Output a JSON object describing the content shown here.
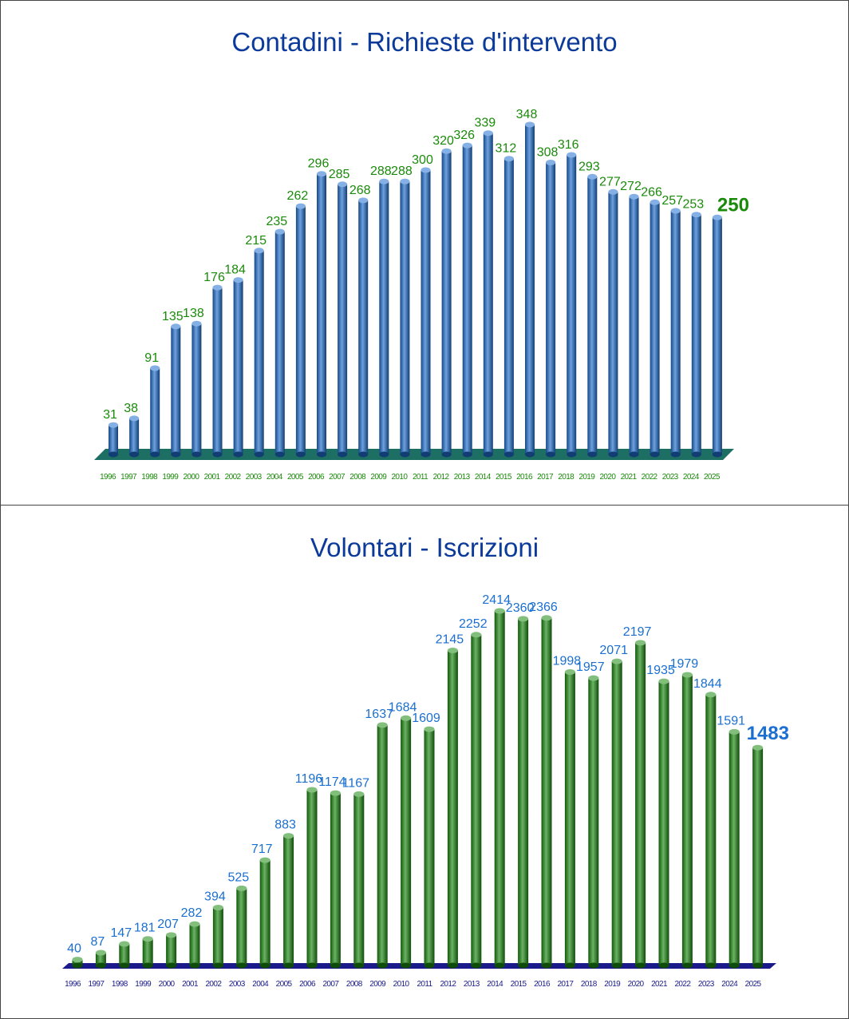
{
  "charts": [
    {
      "title": "Contadini - Richieste d'intervento",
      "chart_data": {
        "type": "bar",
        "title": "Contadini - Richieste d'intervento",
        "categories": [
          "1996",
          "1997",
          "1998",
          "1999",
          "2000",
          "2001",
          "2002",
          "2003",
          "2004",
          "2005",
          "2006",
          "2007",
          "2008",
          "2009",
          "2010",
          "2011",
          "2012",
          "2013",
          "2014",
          "2015",
          "2016",
          "2017",
          "2018",
          "2019",
          "2020",
          "2021",
          "2022",
          "2023",
          "2024",
          "2025"
        ],
        "values": [
          31,
          38,
          91,
          135,
          138,
          176,
          184,
          215,
          235,
          262,
          296,
          285,
          268,
          288,
          288,
          300,
          320,
          326,
          339,
          312,
          348,
          308,
          316,
          293,
          277,
          272,
          266,
          257,
          253,
          250
        ],
        "xlabel": "",
        "ylabel": "",
        "ylim": [
          0,
          348
        ],
        "grid": false,
        "legend": "none",
        "bar_color": "#1f6fd0",
        "label_color": "#1a8a0a",
        "floor_color": "#1d6f64",
        "style": "3d-cylinder"
      }
    },
    {
      "title": "Volontari - Iscrizioni",
      "chart_data": {
        "type": "bar",
        "title": "Volontari - Iscrizioni",
        "categories": [
          "1996",
          "1997",
          "1998",
          "1999",
          "2000",
          "2001",
          "2002",
          "2003",
          "2004",
          "2005",
          "2006",
          "2007",
          "2008",
          "2009",
          "2010",
          "2011",
          "2012",
          "2013",
          "2014",
          "2015",
          "2016",
          "2017",
          "2018",
          "2019",
          "2020",
          "2021",
          "2022",
          "2023",
          "2024",
          "2025"
        ],
        "values": [
          40,
          87,
          147,
          181,
          207,
          282,
          394,
          525,
          717,
          883,
          1196,
          1174,
          1167,
          1637,
          1684,
          1609,
          2145,
          2252,
          2414,
          2360,
          2366,
          1998,
          1957,
          2071,
          2197,
          1935,
          1979,
          1844,
          1591,
          1483
        ],
        "xlabel": "",
        "ylabel": "",
        "ylim": [
          0,
          2414
        ],
        "grid": false,
        "legend": "none",
        "bar_color": "#1c8a10",
        "label_color": "#1a6fd0",
        "floor_color": "#1a1a8a",
        "style": "3d-cylinder"
      }
    }
  ]
}
